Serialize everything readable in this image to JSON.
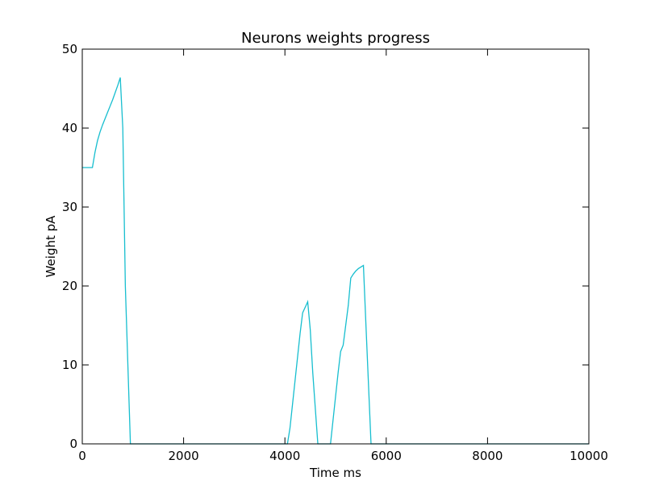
{
  "chart_data": {
    "type": "line",
    "title": "Neurons weights progress",
    "xlabel": "Time ms",
    "ylabel": "Weight pA",
    "xlim": [
      0,
      10000
    ],
    "ylim": [
      0,
      50
    ],
    "xticks": [
      0,
      2000,
      4000,
      6000,
      8000,
      10000
    ],
    "yticks": [
      0,
      10,
      20,
      30,
      40,
      50
    ],
    "xtick_labels": [
      "0",
      "2000",
      "4000",
      "6000",
      "8000",
      "10000"
    ],
    "ytick_labels": [
      "0",
      "10",
      "20",
      "30",
      "40",
      "50"
    ],
    "grid": false,
    "legend": "none",
    "series": [
      {
        "color": "#17becf",
        "x": [
          0,
          100,
          200,
          250,
          300,
          350,
          400,
          450,
          500,
          550,
          600,
          650,
          700,
          750,
          800,
          850,
          950,
          1000,
          2000,
          3000,
          4000,
          4050,
          4100,
          4150,
          4200,
          4250,
          4300,
          4350,
          4400,
          4450,
          4500,
          4550,
          4600,
          4650,
          4700,
          4750,
          4800,
          4900,
          4950,
          5000,
          5050,
          5100,
          5150,
          5200,
          5250,
          5300,
          5350,
          5400,
          5450,
          5500,
          5550,
          5600,
          5650,
          5700,
          5750,
          5800,
          6000,
          7000,
          8000,
          9000,
          10000
        ],
        "y": [
          35.0,
          35.0,
          35.0,
          36.9,
          38.4,
          39.5,
          40.4,
          41.2,
          42.0,
          42.8,
          43.6,
          44.5,
          45.4,
          46.4,
          40.0,
          20.0,
          0.0,
          0.0,
          0.0,
          0.0,
          0.0,
          0.0,
          2.0,
          5.0,
          8.0,
          11.0,
          14.0,
          16.6,
          17.3,
          18.0,
          14.5,
          9.0,
          4.5,
          0.0,
          0.0,
          0.0,
          0.0,
          0.0,
          3.0,
          6.0,
          9.0,
          11.7,
          12.5,
          15.0,
          17.5,
          21.0,
          21.5,
          21.9,
          22.2,
          22.4,
          22.6,
          15.0,
          7.5,
          0.0,
          0.0,
          0.0,
          0.0,
          0.0,
          0.0,
          0.0,
          0.0
        ]
      }
    ]
  }
}
